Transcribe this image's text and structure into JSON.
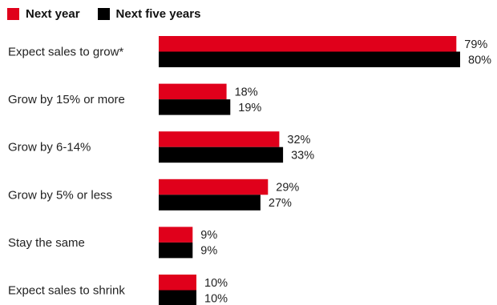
{
  "chart_data": {
    "type": "bar",
    "orientation": "horizontal",
    "categories": [
      "Expect sales to grow*",
      "Grow by 15% or more",
      "Grow by 6-14%",
      "Grow by 5% or less",
      "Stay the same",
      "Expect sales to shrink"
    ],
    "series": [
      {
        "name": "Next year",
        "color": "#e0001b",
        "values": [
          79,
          18,
          32,
          29,
          9,
          10
        ],
        "value_labels": [
          "79%",
          "18%",
          "32%",
          "29%",
          "9%",
          "10%"
        ]
      },
      {
        "name": "Next five years",
        "color": "#000000",
        "values": [
          80,
          19,
          33,
          27,
          9,
          10
        ],
        "value_labels": [
          "80%",
          "19%",
          "33%",
          "27%",
          "9%",
          "10%"
        ]
      }
    ],
    "xlim": [
      0,
      80
    ],
    "title": "",
    "xlabel": "",
    "ylabel": "",
    "grid": false,
    "legend_position": "top-left"
  }
}
